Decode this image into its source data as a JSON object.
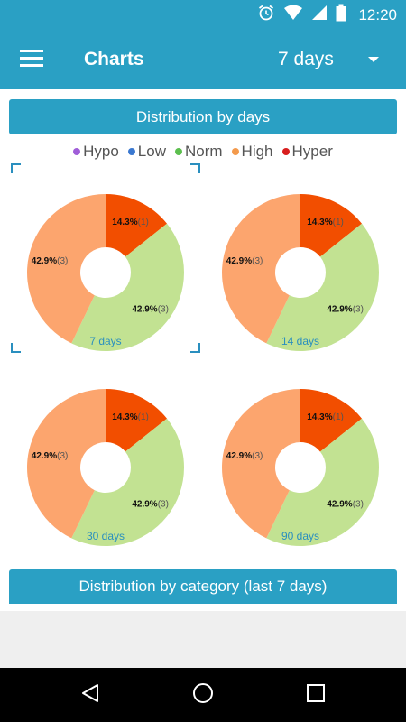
{
  "status_bar": {
    "time": "12:20",
    "icons": [
      "alarm-icon",
      "wifi-icon",
      "cell-signal-icon",
      "battery-icon"
    ]
  },
  "app_bar": {
    "title": "Charts",
    "period_value": "7 days",
    "icons": [
      "menu-icon",
      "dropdown-arrow-icon"
    ]
  },
  "sections": {
    "by_days": "Distribution by days",
    "by_category": "Distribution by category (last 7 days)"
  },
  "legend": [
    {
      "label": "Hypo",
      "color": "#a05ed8"
    },
    {
      "label": "Low",
      "color": "#3a78d0"
    },
    {
      "label": "Norm",
      "color": "#5cbf4e"
    },
    {
      "label": "High",
      "color": "#f39a4c"
    },
    {
      "label": "Hyper",
      "color": "#d81e1e"
    }
  ],
  "colors": {
    "accent": "#2aa0c4",
    "high_slice": "#fca56e",
    "norm_slice": "#c2e292",
    "hyper_slice": "#f24e00"
  },
  "chart_data": [
    {
      "type": "pie",
      "caption": "7 days",
      "selected": true,
      "categories": [
        "Hyper",
        "Norm",
        "High"
      ],
      "values": [
        1,
        3,
        3
      ],
      "labels": [
        {
          "pct": "14.3%",
          "count": "(1)"
        },
        {
          "pct": "42.9%",
          "count": "(3)"
        },
        {
          "pct": "42.9%",
          "count": "(3)"
        }
      ]
    },
    {
      "type": "pie",
      "caption": "14 days",
      "selected": false,
      "categories": [
        "Hyper",
        "Norm",
        "High"
      ],
      "values": [
        1,
        3,
        3
      ],
      "labels": [
        {
          "pct": "14.3%",
          "count": "(1)"
        },
        {
          "pct": "42.9%",
          "count": "(3)"
        },
        {
          "pct": "42.9%",
          "count": "(3)"
        }
      ]
    },
    {
      "type": "pie",
      "caption": "30 days",
      "selected": false,
      "categories": [
        "Hyper",
        "Norm",
        "High"
      ],
      "values": [
        1,
        3,
        3
      ],
      "labels": [
        {
          "pct": "14.3%",
          "count": "(1)"
        },
        {
          "pct": "42.9%",
          "count": "(3)"
        },
        {
          "pct": "42.9%",
          "count": "(3)"
        }
      ]
    },
    {
      "type": "pie",
      "caption": "90 days",
      "selected": false,
      "categories": [
        "Hyper",
        "Norm",
        "High"
      ],
      "values": [
        1,
        3,
        3
      ],
      "labels": [
        {
          "pct": "14.3%",
          "count": "(1)"
        },
        {
          "pct": "42.9%",
          "count": "(3)"
        },
        {
          "pct": "42.9%",
          "count": "(3)"
        }
      ]
    }
  ],
  "nav_bar": {
    "icons": [
      "back-icon",
      "home-icon",
      "recents-icon"
    ]
  }
}
